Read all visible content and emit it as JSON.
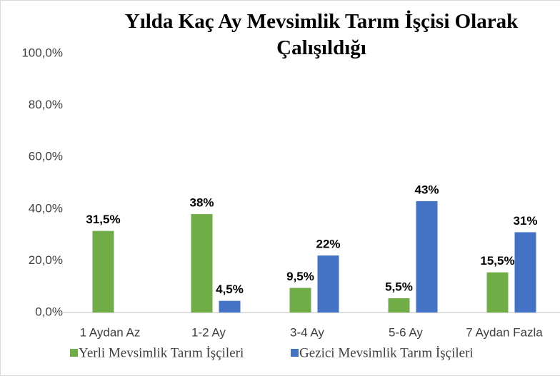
{
  "chart_data": {
    "type": "bar",
    "title": "Yılda Kaç Ay Mevsimlik Tarım İşçisi Olarak Çalışıldığı",
    "categories": [
      "1 Aydan Az",
      "1-2 Ay",
      "3-4 Ay",
      "5-6 Ay",
      "7 Aydan Fazla"
    ],
    "series": [
      {
        "name": "Yerli Mevsimlik Tarım İşçileri",
        "color": "#70ad47",
        "values": [
          31.5,
          38,
          9.5,
          5.5,
          15.5
        ],
        "value_labels": [
          "31,5%",
          "38%",
          "9,5%",
          "5,5%",
          "15,5%"
        ]
      },
      {
        "name": "Gezici Mevsimlik Tarım İşçileri",
        "color": "#4472c4",
        "values": [
          null,
          4.5,
          22,
          43,
          31
        ],
        "value_labels": [
          null,
          "4,5%",
          "22%",
          "43%",
          "31%"
        ]
      }
    ],
    "ylim": [
      0,
      100
    ],
    "yticks": [
      {
        "value": 0,
        "label": "0,0%"
      },
      {
        "value": 20,
        "label": "20,0%"
      },
      {
        "value": 40,
        "label": "40,0%"
      },
      {
        "value": 60,
        "label": "60,0%"
      },
      {
        "value": 80,
        "label": "80,0%"
      },
      {
        "value": 100,
        "label": "100,0%"
      }
    ],
    "grid": false,
    "legend": "bottom"
  }
}
